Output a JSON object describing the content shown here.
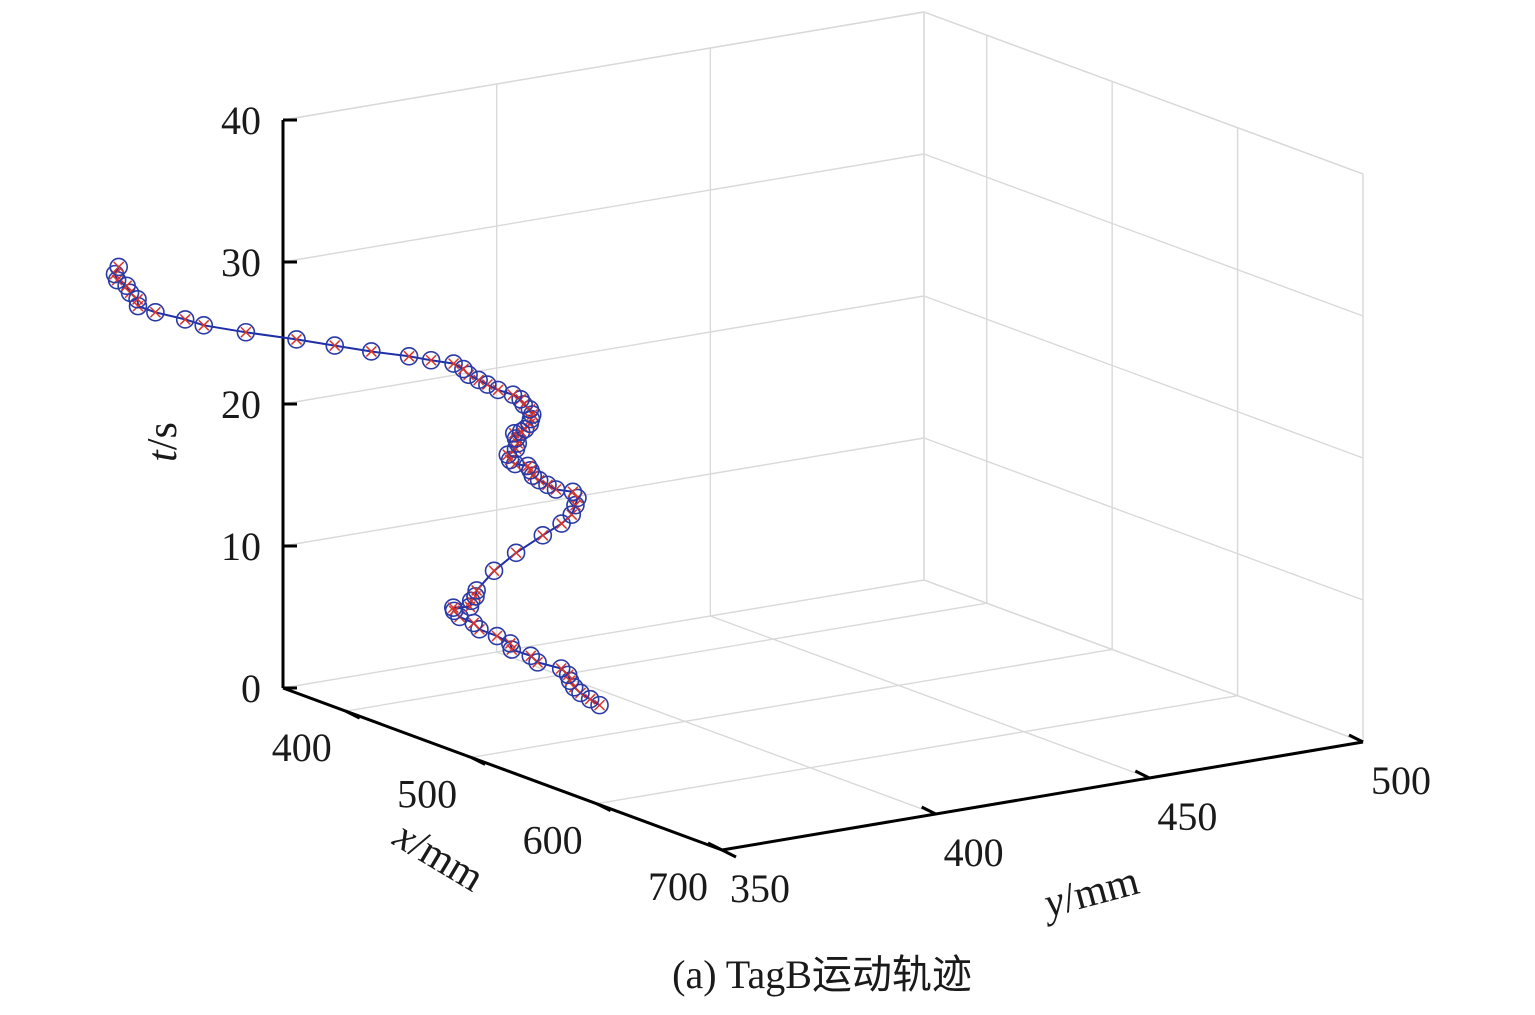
{
  "caption": "(a) TagB运动轨迹",
  "chart_data": {
    "type": "scatter3d",
    "axes": {
      "x": {
        "label_var": "x",
        "label_unit": "/mm",
        "range": [
          350,
          700
        ],
        "ticks": [
          400,
          500,
          600,
          700
        ]
      },
      "y": {
        "label_var": "y",
        "label_unit": "/mm",
        "range": [
          350,
          500
        ],
        "ticks": [
          350,
          400,
          450,
          500
        ]
      },
      "t": {
        "label_var": "t",
        "label_unit": "/s",
        "range": [
          0,
          40
        ],
        "ticks": [
          0,
          10,
          20,
          30,
          40
        ]
      }
    },
    "grid": true,
    "colors": {
      "line": "#1f2fa8",
      "circle_marker": "#2a3aa6",
      "cross_marker": "#d8342a",
      "grid": "#d9d9d9",
      "axis": "#000000"
    },
    "markers": [
      "circle",
      "x-cross"
    ],
    "series": [
      {
        "points": [
          [
            454.5,
            393.4,
            0.0
          ],
          [
            452.8,
            391.7,
            0.45
          ],
          [
            450.9,
            390.0,
            0.91
          ],
          [
            450.3,
            388.7,
            1.36
          ],
          [
            449.4,
            388.0,
            1.82
          ],
          [
            449.6,
            387.5,
            2.27
          ],
          [
            448.1,
            386.3,
            2.73
          ],
          [
            442.6,
            382.4,
            3.18
          ],
          [
            440.9,
            381.3,
            3.64
          ],
          [
            436.3,
            378.2,
            4.09
          ],
          [
            436.5,
            377.8,
            4.55
          ],
          [
            431.7,
            376.1,
            5.0
          ],
          [
            426.9,
            373.4,
            5.45
          ],
          [
            425.7,
            372.4,
            5.91
          ],
          [
            422.6,
            370.0,
            6.36
          ],
          [
            422.0,
            368.9,
            6.82
          ],
          [
            426.5,
            367.4,
            7.27
          ],
          [
            439.1,
            367.6,
            7.73
          ],
          [
            440.1,
            367.6,
            8.18
          ],
          [
            444.2,
            367.4,
            8.64
          ],
          [
            445.1,
            367.4,
            9.09
          ],
          [
            430.0,
            375.9,
            9.55
          ],
          [
            418.3,
            384.5,
            10.0
          ],
          [
            408.6,
            393.6,
            10.45
          ],
          [
            405.5,
            398.9,
            10.91
          ],
          [
            404.4,
            401.6,
            11.36
          ],
          [
            400.9,
            403.5,
            11.82
          ],
          [
            400.1,
            404.2,
            12.27
          ],
          [
            399.5,
            403.3,
            12.73
          ],
          [
            401.4,
            398.8,
            13.18
          ],
          [
            402.1,
            396.6,
            13.64
          ],
          [
            402.6,
            394.5,
            14.09
          ],
          [
            404.0,
            392.6,
            14.55
          ],
          [
            404.9,
            391.8,
            15.0
          ],
          [
            407.2,
            390.5,
            15.45
          ],
          [
            411.0,
            386.4,
            15.91
          ],
          [
            413.2,
            384.6,
            16.36
          ],
          [
            414.4,
            383.7,
            16.82
          ],
          [
            417.2,
            384.8,
            17.27
          ],
          [
            419.3,
            384.6,
            17.73
          ],
          [
            421.0,
            383.7,
            18.18
          ],
          [
            422.6,
            382.8,
            18.64
          ],
          [
            431.5,
            381.8,
            19.09
          ],
          [
            438.4,
            380.7,
            19.55
          ],
          [
            441.1,
            381.0,
            20.0
          ],
          [
            443.8,
            380.5,
            20.45
          ],
          [
            447.2,
            379.8,
            20.91
          ],
          [
            448.4,
            378.9,
            21.36
          ],
          [
            449.2,
            377.2,
            21.82
          ],
          [
            450.2,
            376.2,
            22.27
          ],
          [
            451.2,
            374.1,
            22.73
          ],
          [
            449.9,
            371.0,
            23.18
          ],
          [
            448.9,
            368.8,
            23.64
          ],
          [
            449.4,
            366.6,
            24.09
          ],
          [
            448.9,
            364.4,
            24.55
          ],
          [
            448.5,
            363.3,
            25.0
          ],
          [
            447.5,
            361.3,
            25.45
          ],
          [
            446.6,
            356.3,
            25.91
          ],
          [
            444.7,
            351.7,
            26.36
          ],
          [
            437.8,
            344.9,
            26.82
          ],
          [
            429.4,
            338.8,
            27.27
          ],
          [
            420.4,
            332.5,
            27.73
          ],
          [
            406.6,
            324.7,
            28.18
          ],
          [
            395.5,
            318.1,
            28.64
          ],
          [
            391.6,
            314.9,
            29.09
          ],
          [
            383.2,
            310.4,
            29.55
          ],
          [
            379.2,
            307.5,
            30.0
          ],
          [
            378.5,
            307.6,
            30.45
          ],
          [
            376.6,
            306.4,
            30.91
          ],
          [
            374.9,
            306.1,
            31.36
          ],
          [
            373.8,
            304.2,
            31.82
          ],
          [
            373.8,
            303.7,
            32.27
          ],
          [
            373.7,
            304.6,
            32.73
          ]
        ]
      }
    ]
  }
}
